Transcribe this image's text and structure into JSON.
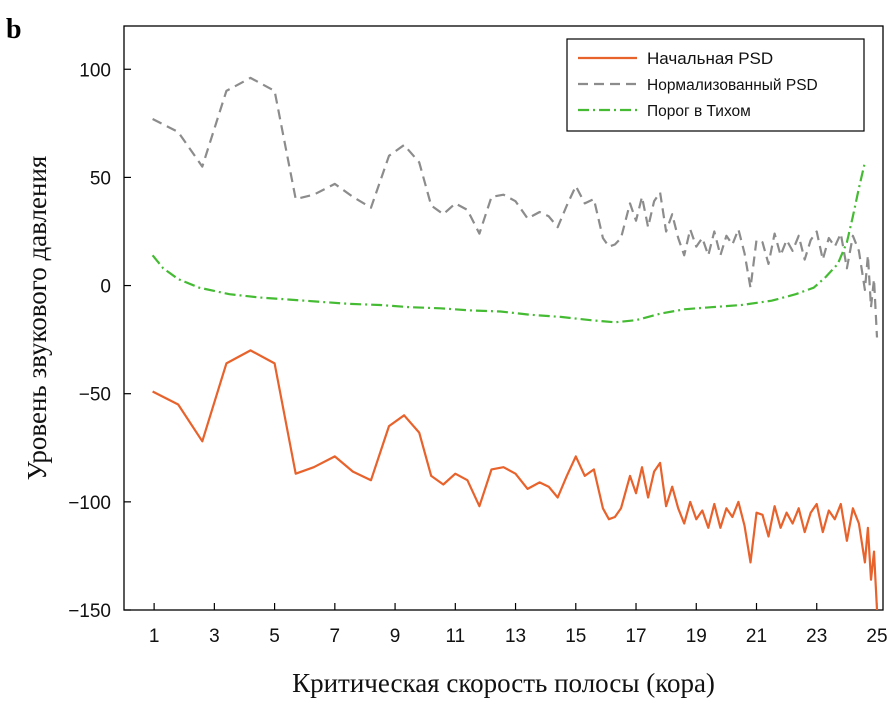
{
  "panel_label": "b",
  "chart_data": {
    "type": "line",
    "xlabel": "Критическая скорость полосы (кора)",
    "ylabel": "Уровень звукового давления",
    "xlim": [
      0,
      25.2
    ],
    "ylim": [
      -150,
      120
    ],
    "x_ticks": [
      1,
      3,
      5,
      7,
      9,
      11,
      13,
      15,
      17,
      19,
      21,
      23,
      25
    ],
    "y_ticks": [
      100,
      50,
      0,
      -50,
      -100,
      -150
    ],
    "y_tick_labels": [
      "100",
      "50",
      "0",
      "−50",
      "−100",
      "−150"
    ],
    "grid": false,
    "legend_position": "top-right",
    "series": [
      {
        "name": "Начальная PSD",
        "color": "#e8622c",
        "style": "solid",
        "x": [
          0.95,
          1.8,
          2.6,
          3.4,
          4.2,
          5.0,
          5.7,
          6.3,
          7.0,
          7.6,
          8.2,
          8.8,
          9.3,
          9.8,
          10.2,
          10.6,
          11.0,
          11.4,
          11.8,
          12.2,
          12.6,
          13.0,
          13.4,
          13.8,
          14.1,
          14.4,
          14.7,
          15.0,
          15.3,
          15.6,
          15.9,
          16.1,
          16.3,
          16.5,
          16.8,
          17.0,
          17.2,
          17.4,
          17.6,
          17.8,
          18.0,
          18.2,
          18.4,
          18.6,
          18.8,
          19.0,
          19.2,
          19.4,
          19.6,
          19.8,
          20.0,
          20.2,
          20.4,
          20.6,
          20.8,
          21.0,
          21.2,
          21.4,
          21.6,
          21.8,
          22.0,
          22.2,
          22.4,
          22.6,
          22.8,
          23.0,
          23.2,
          23.4,
          23.6,
          23.8,
          24.0,
          24.2,
          24.4,
          24.6,
          24.7,
          24.8,
          24.9,
          25.0
        ],
        "y": [
          -49,
          -55,
          -72,
          -36,
          -30,
          -36,
          -87,
          -84,
          -79,
          -86,
          -90,
          -65,
          -60,
          -68,
          -88,
          -92,
          -87,
          -90,
          -102,
          -85,
          -84,
          -87,
          -94,
          -91,
          -93,
          -98,
          -88,
          -79,
          -88,
          -85,
          -103,
          -108,
          -107,
          -103,
          -88,
          -96,
          -84,
          -98,
          -86,
          -82,
          -102,
          -93,
          -103,
          -110,
          -100,
          -108,
          -104,
          -112,
          -101,
          -112,
          -103,
          -107,
          -100,
          -111,
          -128,
          -105,
          -106,
          -116,
          -102,
          -112,
          -105,
          -110,
          -103,
          -114,
          -105,
          -101,
          -114,
          -104,
          -108,
          -101,
          -118,
          -103,
          -110,
          -128,
          -112,
          -136,
          -123,
          -150
        ]
      },
      {
        "name": "Нормализованный PSD",
        "color": "#8c8c8c",
        "style": "dashed",
        "x": [
          0.95,
          1.8,
          2.6,
          3.4,
          4.2,
          5.0,
          5.7,
          6.3,
          7.0,
          7.6,
          8.2,
          8.8,
          9.3,
          9.8,
          10.2,
          10.6,
          11.0,
          11.4,
          11.8,
          12.2,
          12.6,
          13.0,
          13.4,
          13.8,
          14.1,
          14.4,
          14.7,
          15.0,
          15.3,
          15.6,
          15.9,
          16.1,
          16.3,
          16.5,
          16.8,
          17.0,
          17.2,
          17.4,
          17.6,
          17.8,
          18.0,
          18.2,
          18.4,
          18.6,
          18.8,
          19.0,
          19.2,
          19.4,
          19.6,
          19.8,
          20.0,
          20.2,
          20.4,
          20.6,
          20.8,
          21.0,
          21.2,
          21.4,
          21.6,
          21.8,
          22.0,
          22.2,
          22.4,
          22.6,
          22.8,
          23.0,
          23.2,
          23.4,
          23.6,
          23.8,
          24.0,
          24.2,
          24.4,
          24.6,
          24.7,
          24.8,
          24.9,
          25.0
        ],
        "y": [
          77,
          71,
          55,
          90,
          96,
          90,
          40,
          42,
          47,
          41,
          36,
          60,
          65,
          57,
          37,
          33,
          38,
          35,
          24,
          41,
          42,
          39,
          31,
          34,
          32,
          27,
          37,
          46,
          38,
          40,
          22,
          18,
          19,
          22,
          38,
          30,
          41,
          27,
          39,
          43,
          25,
          33,
          22,
          14,
          26,
          18,
          22,
          14,
          25,
          14,
          23,
          19,
          26,
          15,
          -1,
          21,
          20,
          10,
          24,
          14,
          21,
          16,
          23,
          12,
          21,
          25,
          12,
          22,
          18,
          24,
          8,
          23,
          16,
          -2,
          14,
          -10,
          3,
          -24
        ]
      },
      {
        "name": "Порог в Тихом",
        "color": "#44bb33",
        "style": "dashdot",
        "x": [
          0.95,
          1.3,
          1.8,
          2.5,
          3.5,
          4.5,
          5.5,
          6.5,
          7.5,
          8.5,
          9.5,
          10.5,
          11.5,
          12.5,
          13.5,
          14.5,
          15.5,
          16.3,
          17.0,
          17.8,
          18.6,
          19.5,
          20.5,
          21.5,
          22.3,
          22.9,
          23.3,
          23.7,
          24.0,
          24.2,
          24.4,
          24.6
        ],
        "y": [
          14,
          8,
          3,
          -1,
          -4,
          -5.5,
          -6.5,
          -7.5,
          -8.5,
          -9,
          -10,
          -10.5,
          -11.5,
          -12,
          -13.5,
          -14.5,
          -16,
          -17,
          -16,
          -13,
          -11,
          -10,
          -9,
          -7,
          -4,
          -1,
          4,
          10,
          20,
          32,
          45,
          57
        ]
      }
    ]
  }
}
